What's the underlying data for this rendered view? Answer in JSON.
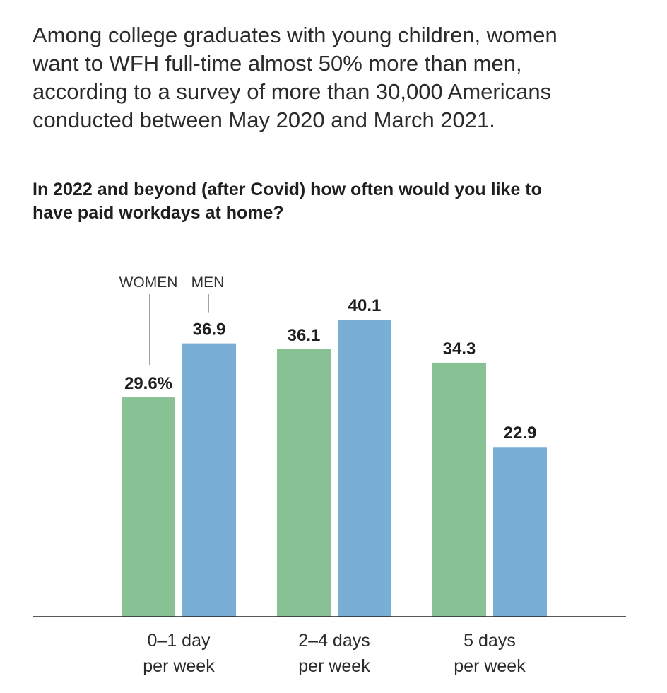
{
  "headline": {
    "lines": [
      "Among college graduates with young children, women",
      "want to WFH full-time almost 50% more than men,",
      "according to a survey of more than 30,000 Americans",
      "conducted between May 2020 and March 2021."
    ]
  },
  "question": {
    "lines": [
      "In 2022 and beyond (after Covid) how often would you like to",
      "have paid workdays at home?"
    ]
  },
  "chart_data": {
    "type": "bar",
    "title": "",
    "xlabel": "",
    "ylabel": "",
    "categories": [
      [
        "0–1 day",
        "per week"
      ],
      [
        "2–4 days",
        "per week"
      ],
      [
        "5 days",
        "per week"
      ]
    ],
    "series": [
      {
        "name": "WOMEN",
        "color": "#88c193",
        "values": [
          29.6,
          36.1,
          34.3
        ],
        "labels": [
          "29.6%",
          "36.1",
          "34.3"
        ]
      },
      {
        "name": "MEN",
        "color": "#79aed6",
        "values": [
          36.9,
          40.1,
          22.9
        ],
        "labels": [
          "36.9",
          "40.1",
          "22.9"
        ]
      }
    ],
    "ylim": [
      0,
      48.9
    ],
    "grid": false,
    "legend": "direct labels above first category"
  }
}
